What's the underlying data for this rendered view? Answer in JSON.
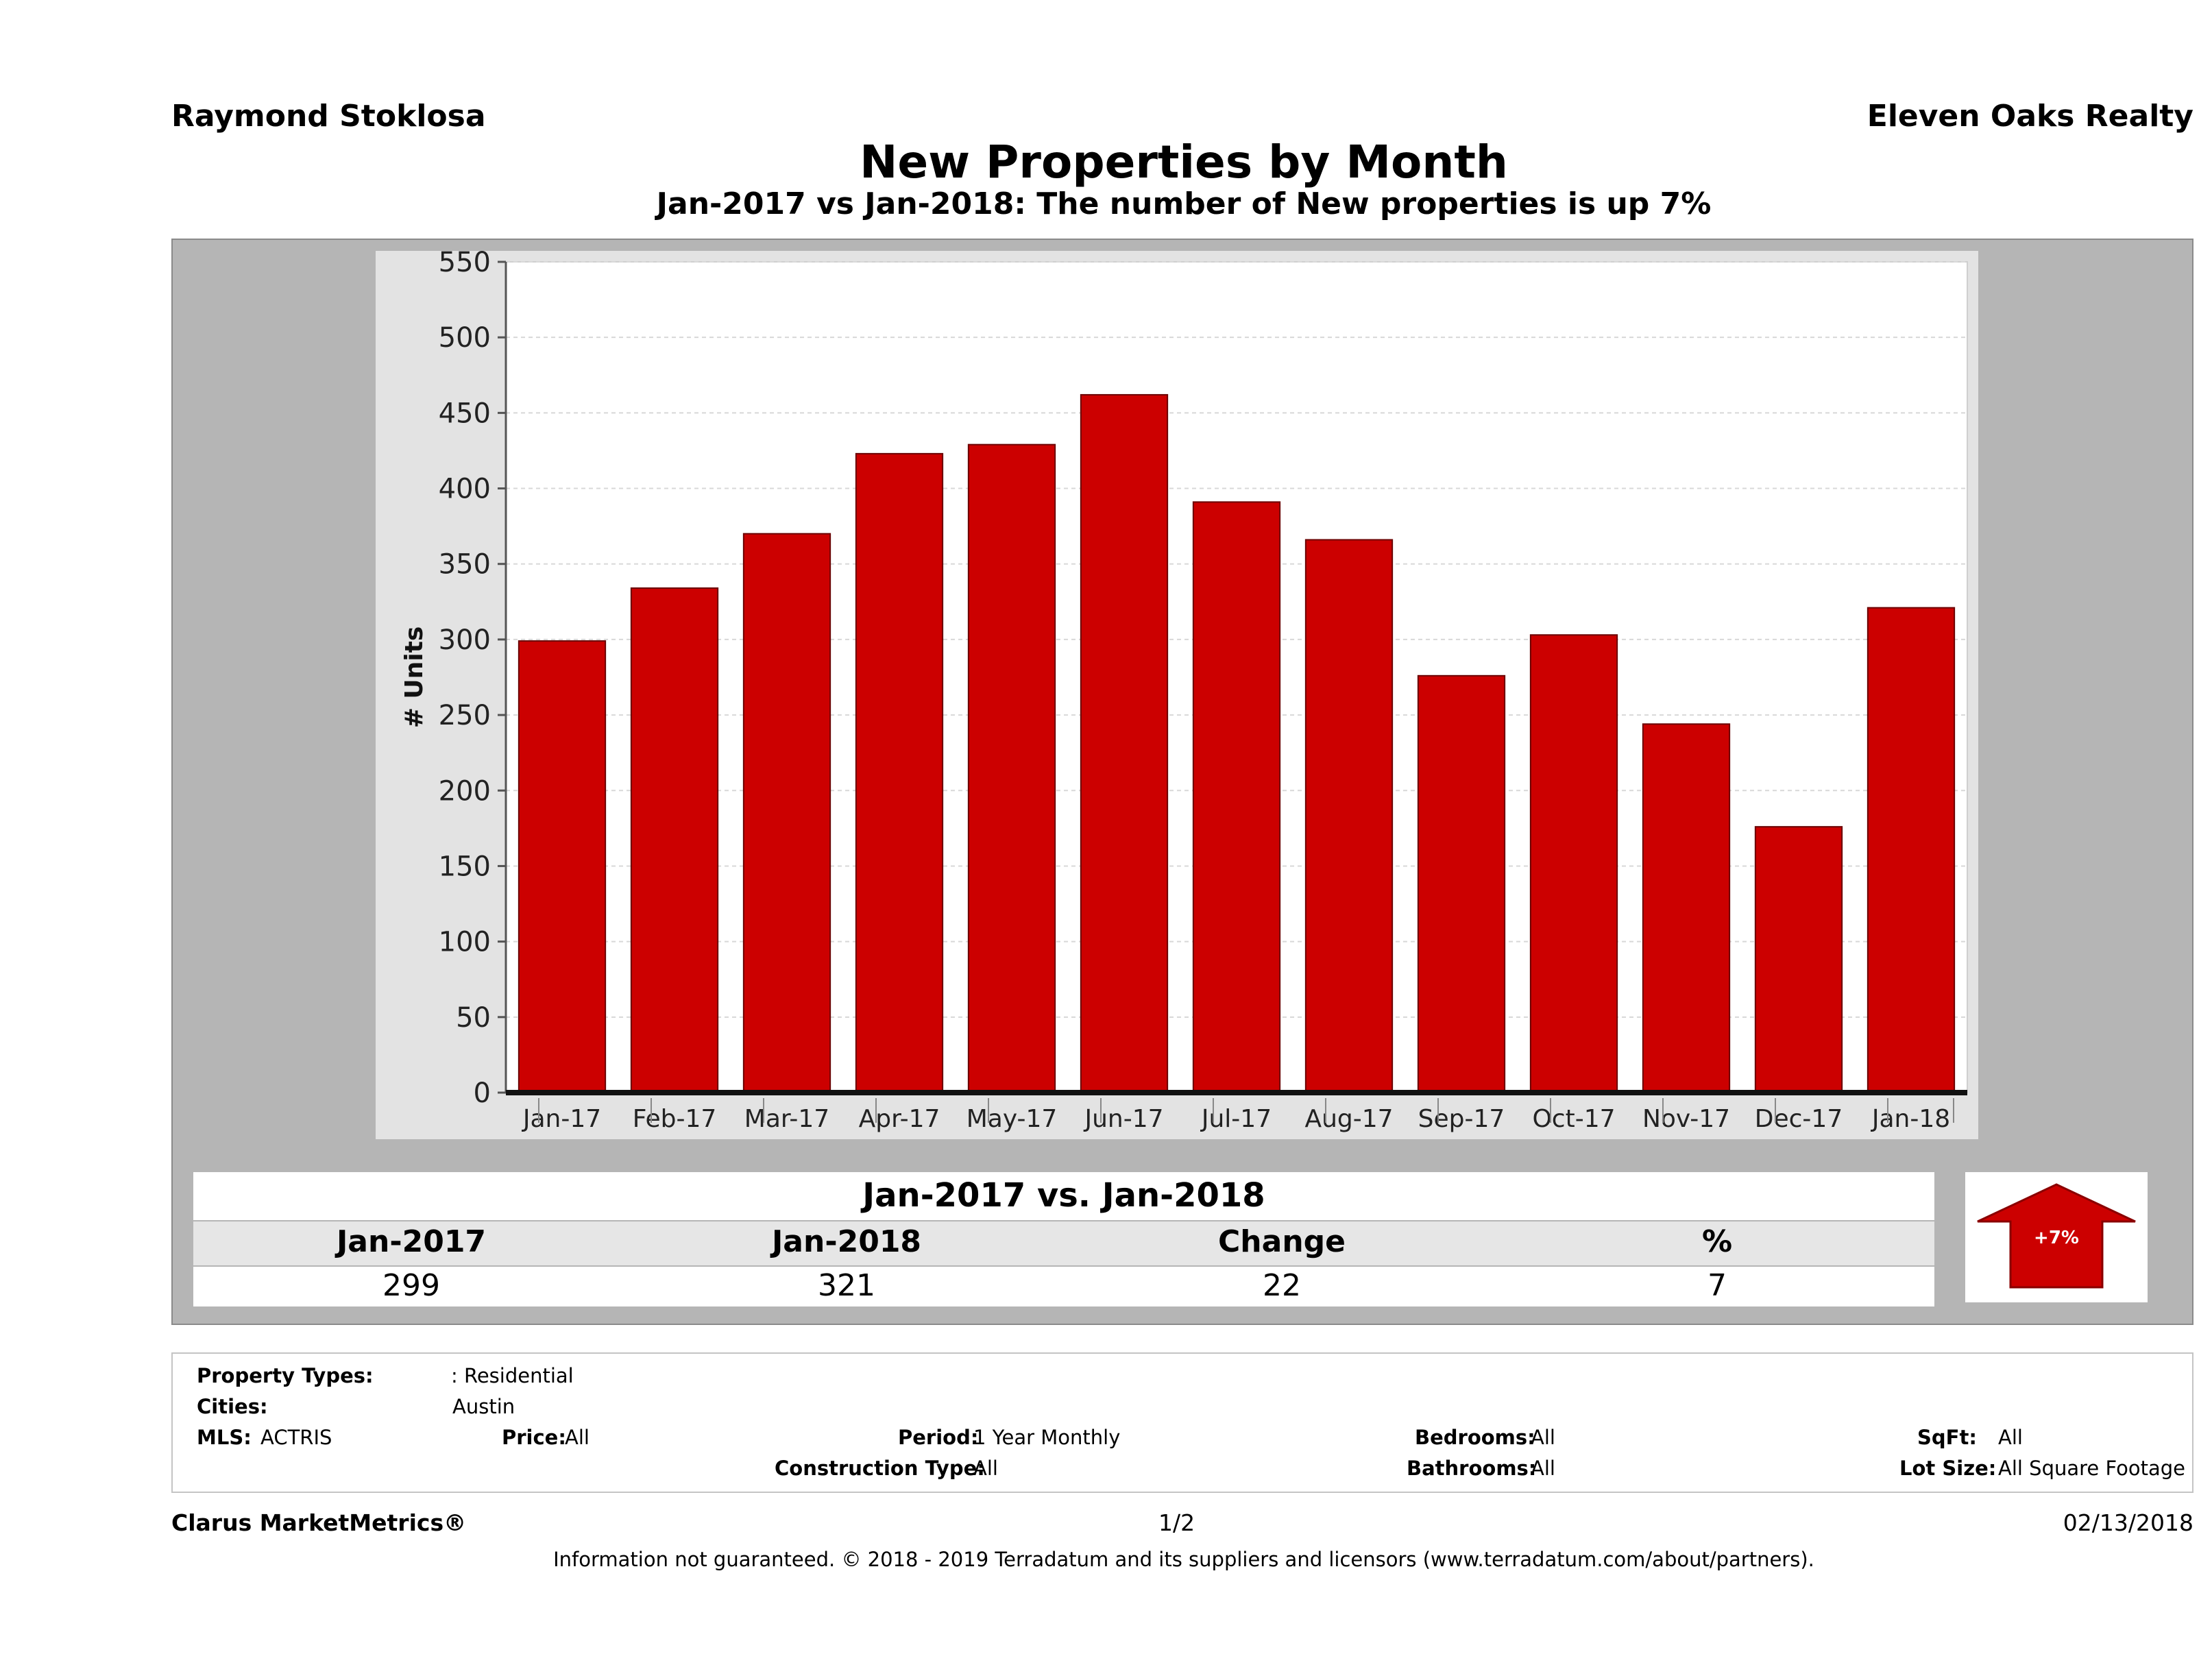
{
  "header": {
    "agent": "Raymond Stoklosa",
    "brokerage": "Eleven Oaks Realty",
    "title": "New Properties by Month",
    "subtitle": "Jan-2017 vs Jan-2018: The number of New  properties is up 7%"
  },
  "chart_data": {
    "type": "bar",
    "categories": [
      "Jan-17",
      "Feb-17",
      "Mar-17",
      "Apr-17",
      "May-17",
      "Jun-17",
      "Jul-17",
      "Aug-17",
      "Sep-17",
      "Oct-17",
      "Nov-17",
      "Dec-17",
      "Jan-18"
    ],
    "values": [
      299,
      334,
      370,
      423,
      429,
      462,
      391,
      366,
      276,
      303,
      244,
      176,
      321
    ],
    "ylabel": "# Units",
    "ylim": [
      0,
      550
    ],
    "yticks": [
      0,
      50,
      100,
      150,
      200,
      250,
      300,
      350,
      400,
      450,
      500,
      550
    ],
    "grid": true,
    "bar_color": "#cc0000"
  },
  "summary": {
    "title": "Jan-2017 vs. Jan-2018",
    "headers": [
      "Jan-2017",
      "Jan-2018",
      "Change",
      "%"
    ],
    "values": [
      "299",
      "321",
      "22",
      "7"
    ],
    "badge": "+7%",
    "badge_color": "#cc0000"
  },
  "filters": {
    "property_types_label": "Property Types:",
    "property_types_value": ": Residential",
    "cities_label": "Cities:",
    "cities_value": "Austin",
    "mls_label": "MLS:",
    "mls_value": "ACTRIS",
    "price_label": "Price:",
    "price_value": "All",
    "period_label": "Period:",
    "period_value": "1 Year Monthly",
    "construction_label": "Construction Type:",
    "construction_value": "All",
    "bedrooms_label": "Bedrooms:",
    "bedrooms_value": "All",
    "bathrooms_label": "Bathrooms:",
    "bathrooms_value": "All",
    "sqft_label": "SqFt:",
    "sqft_value": "All",
    "lotsize_label": "Lot Size:",
    "lotsize_value": "All Square Footage"
  },
  "footer": {
    "product": "Clarus MarketMetrics®",
    "page": "1/2",
    "date": "02/13/2018",
    "disclaimer": "Information not guaranteed. © 2018 - 2019 Terradatum and its suppliers and licensors (www.terradatum.com/about/partners)."
  }
}
